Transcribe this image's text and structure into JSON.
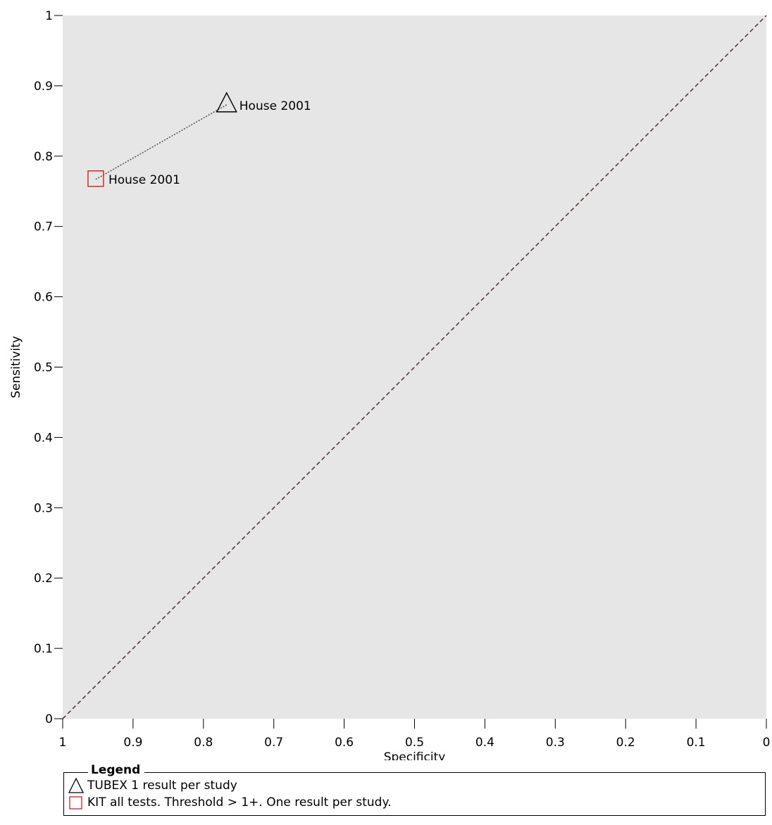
{
  "chart_data": {
    "type": "scatter",
    "xlabel": "Specificity",
    "ylabel": "Sensitivity",
    "xlim": [
      1,
      0
    ],
    "ylim": [
      0,
      1
    ],
    "x_ticks": [
      "1",
      "0.9",
      "0.8",
      "0.7",
      "0.6",
      "0.5",
      "0.4",
      "0.3",
      "0.2",
      "0.1",
      "0"
    ],
    "y_ticks": [
      "0",
      "0.1",
      "0.2",
      "0.3",
      "0.4",
      "0.5",
      "0.6",
      "0.7",
      "0.8",
      "0.9",
      "1"
    ],
    "reference_line": "chance diagonal",
    "series": [
      {
        "name": "TUBEX 1 result per study",
        "marker": "triangle",
        "color": "#000000",
        "points": [
          {
            "label": "House 2001",
            "x": 0.767,
            "y": 0.873
          }
        ]
      },
      {
        "name": "KIT all tests. Threshold > 1+. One result per study.",
        "marker": "square",
        "color": "#cc2020",
        "points": [
          {
            "label": "House 2001",
            "x": 0.953,
            "y": 0.767
          }
        ]
      }
    ],
    "connector": "dotted line linking results of the same study",
    "legend": {
      "title": "Legend",
      "placement": "bottom"
    }
  }
}
